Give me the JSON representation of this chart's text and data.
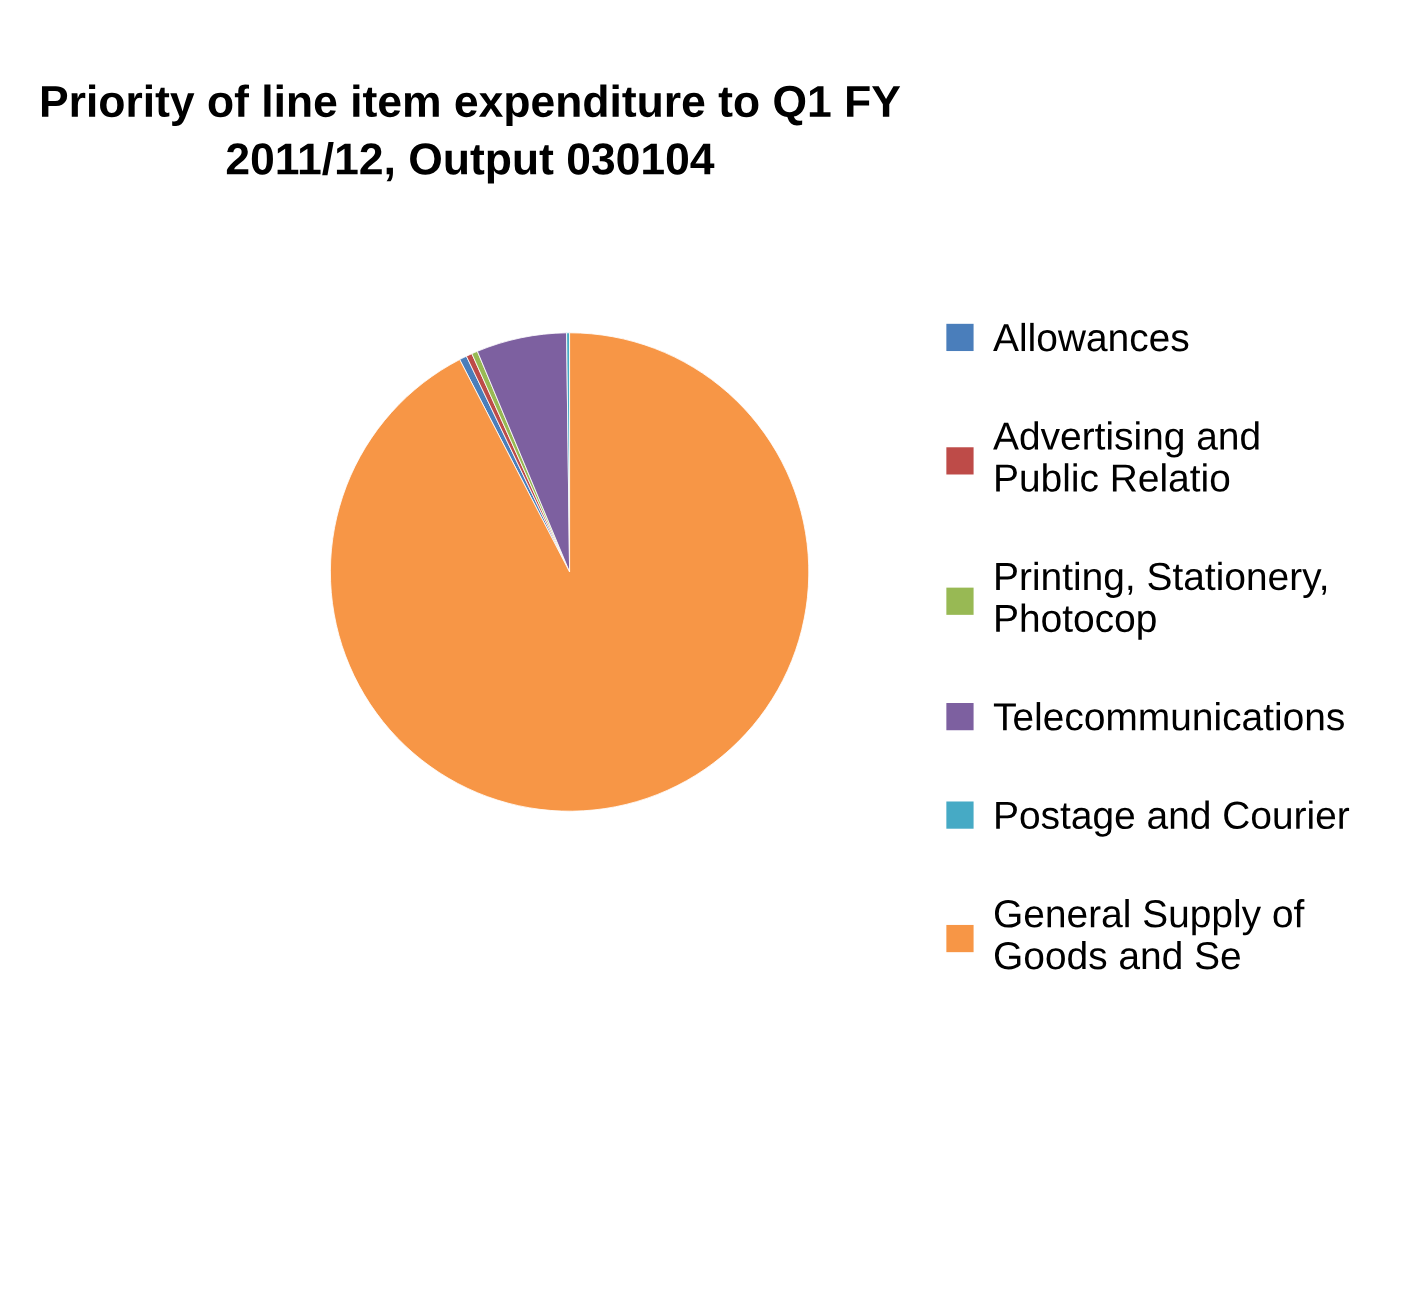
{
  "chart_data": {
    "type": "pie",
    "title": "Priority of line item expenditure to Q1 FY\n2011/12, Output 030104",
    "categories": [
      "Allowances",
      "Advertising and\nPublic Relatio",
      "Printing, Stationery,\nPhotocop",
      "Telecommunications",
      "Postage and Courier",
      "General Supply of\nGoods and Se"
    ],
    "values": [
      0.5,
      0.4,
      0.4,
      6.1,
      0.2,
      92.4
    ],
    "colors": [
      "#4a7ebb",
      "#be4b48",
      "#98b954",
      "#7d60a0",
      "#46aac5",
      "#f79646"
    ],
    "legend": "right"
  }
}
